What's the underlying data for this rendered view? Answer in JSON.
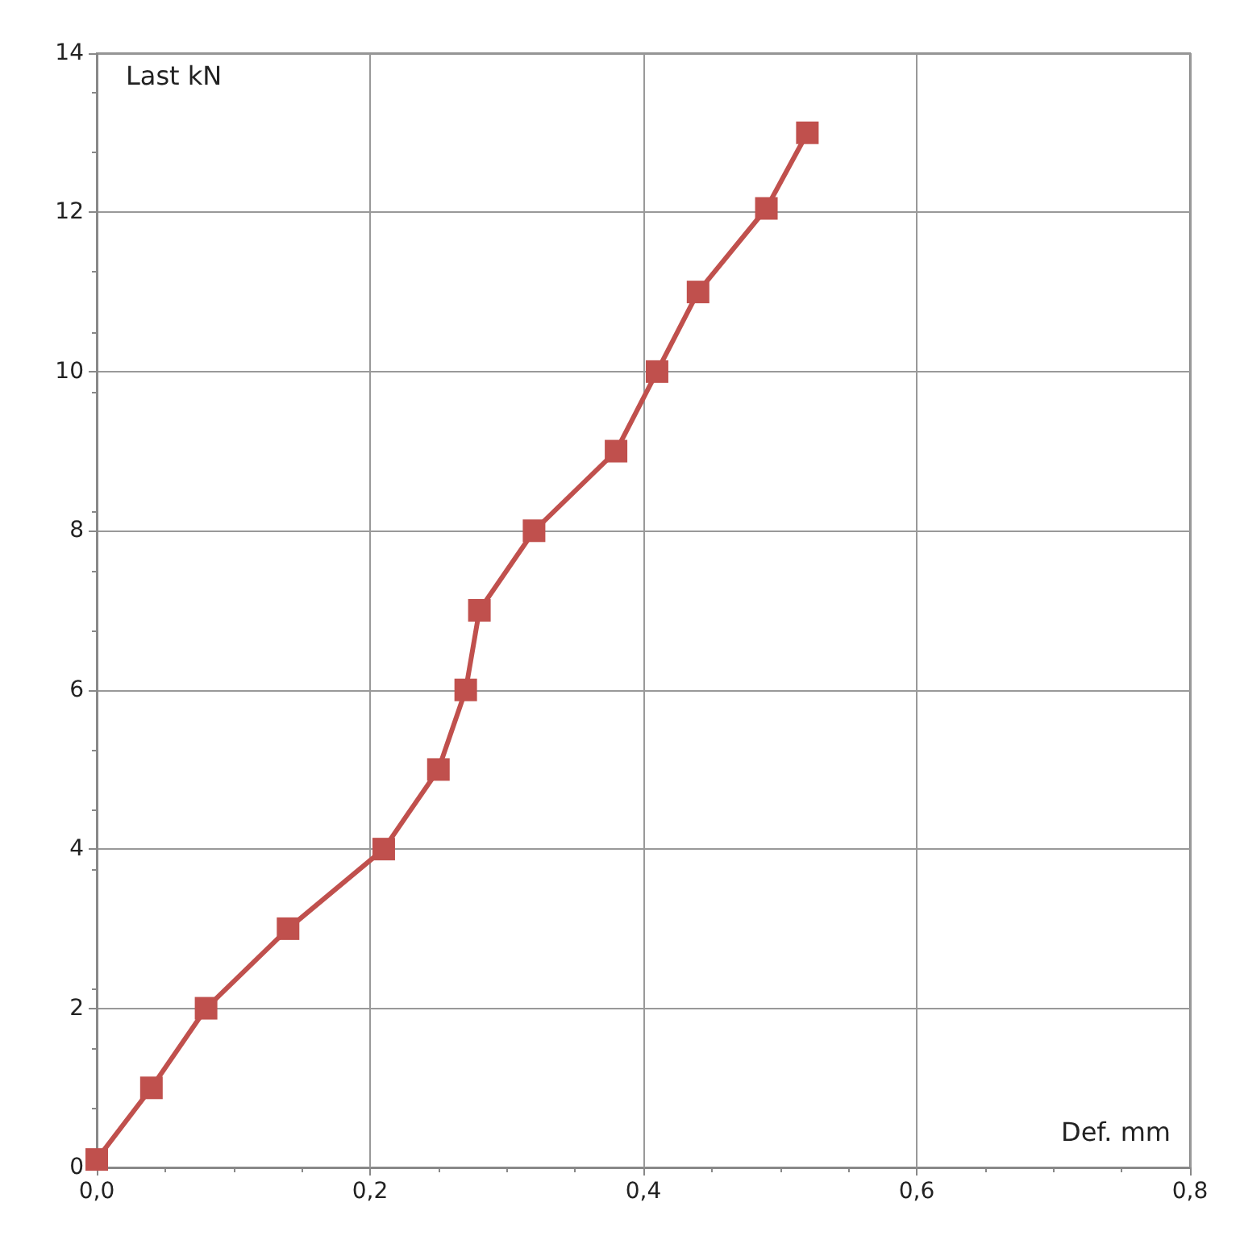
{
  "chart_data": {
    "type": "line",
    "xlabel": "Def. mm",
    "ylabel": "Last kN",
    "x": [
      0,
      0.04,
      0.08,
      0.14,
      0.21,
      0.25,
      0.27,
      0.28,
      0.32,
      0.38,
      0.41,
      0.44,
      0.49,
      0.52
    ],
    "series": [
      {
        "color": "#c0504d",
        "values": [
          0.1,
          1,
          2,
          3,
          4,
          5,
          6,
          7,
          8,
          9,
          10,
          11,
          12.05,
          13
        ]
      }
    ],
    "xlim": [
      0,
      0.8
    ],
    "xticks": [
      {
        "value": 0,
        "label": "0,0"
      },
      {
        "value": 0.2,
        "label": "0,2"
      },
      {
        "value": 0.4,
        "label": "0,4"
      },
      {
        "value": 0.6,
        "label": "0,6"
      },
      {
        "value": 0.8,
        "label": "0,8"
      }
    ],
    "ylim": [
      0,
      14
    ],
    "yticks": [
      0,
      2,
      4,
      6,
      8,
      10,
      12,
      14
    ],
    "grid": true,
    "marker": "square",
    "line_style": "solid"
  }
}
